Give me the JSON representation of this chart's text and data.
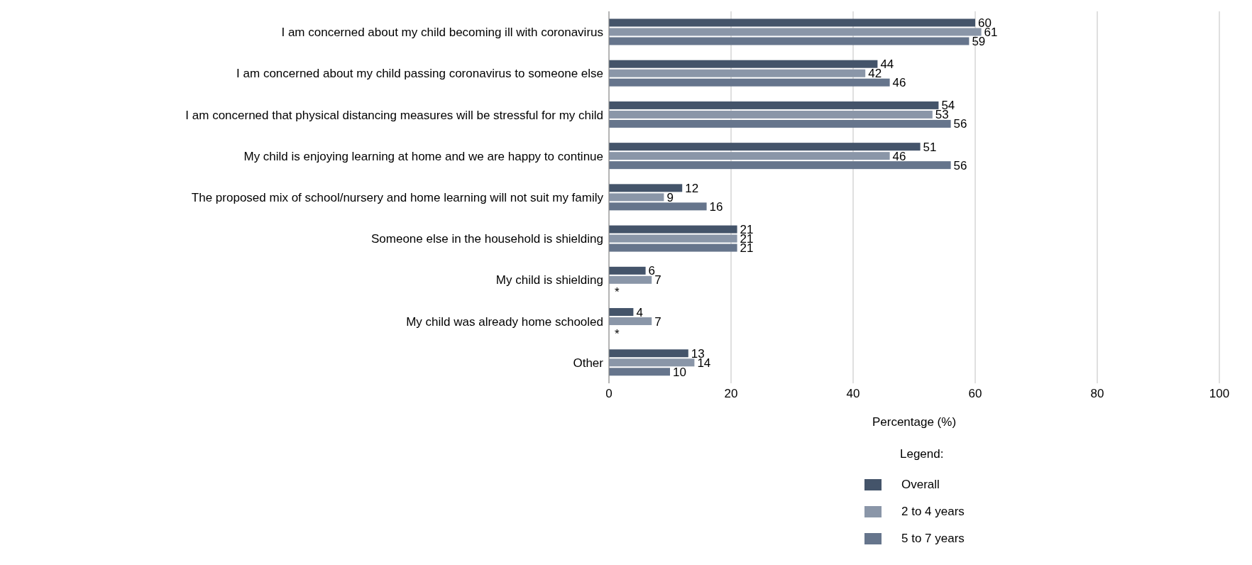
{
  "chart_data": {
    "type": "bar",
    "orientation": "horizontal",
    "xlabel": "Percentage (%)",
    "legend_title": "Legend:",
    "categories": [
      "I am concerned about my child becoming ill with coronavirus",
      "I am concerned about my child passing coronavirus to someone else",
      "I am concerned that physical distancing measures will be stressful for my child",
      "My child is enjoying learning at home and we are happy to continue",
      "The proposed mix of school/nursery and home learning will not suit my family",
      "Someone else in the household is shielding",
      "My child is shielding",
      "My child was already home schooled",
      "Other"
    ],
    "series": [
      {
        "name": "Overall",
        "color": "#44546a",
        "values": [
          60,
          44,
          54,
          51,
          12,
          21,
          6,
          4,
          13
        ],
        "value_labels": [
          "60",
          "44",
          "54",
          "51",
          "12",
          "21",
          "6",
          "4",
          "13"
        ]
      },
      {
        "name": "2 to 4 years",
        "color": "#8a96a8",
        "values": [
          61,
          42,
          53,
          46,
          9,
          21,
          7,
          7,
          14
        ],
        "value_labels": [
          "61",
          "42",
          "53",
          "46",
          "9",
          "21",
          "7",
          "7",
          "14"
        ]
      },
      {
        "name": "5 to 7 years",
        "color": "#66758c",
        "values": [
          59,
          46,
          56,
          56,
          16,
          21,
          null,
          null,
          10
        ],
        "value_labels": [
          "59",
          "46",
          "56",
          "56",
          "16",
          "21",
          "*",
          "*",
          "10"
        ]
      }
    ],
    "xlim": [
      0,
      100
    ],
    "xticks": [
      0,
      20,
      40,
      60,
      80,
      100
    ],
    "grid": "x",
    "legend": "bottom"
  }
}
